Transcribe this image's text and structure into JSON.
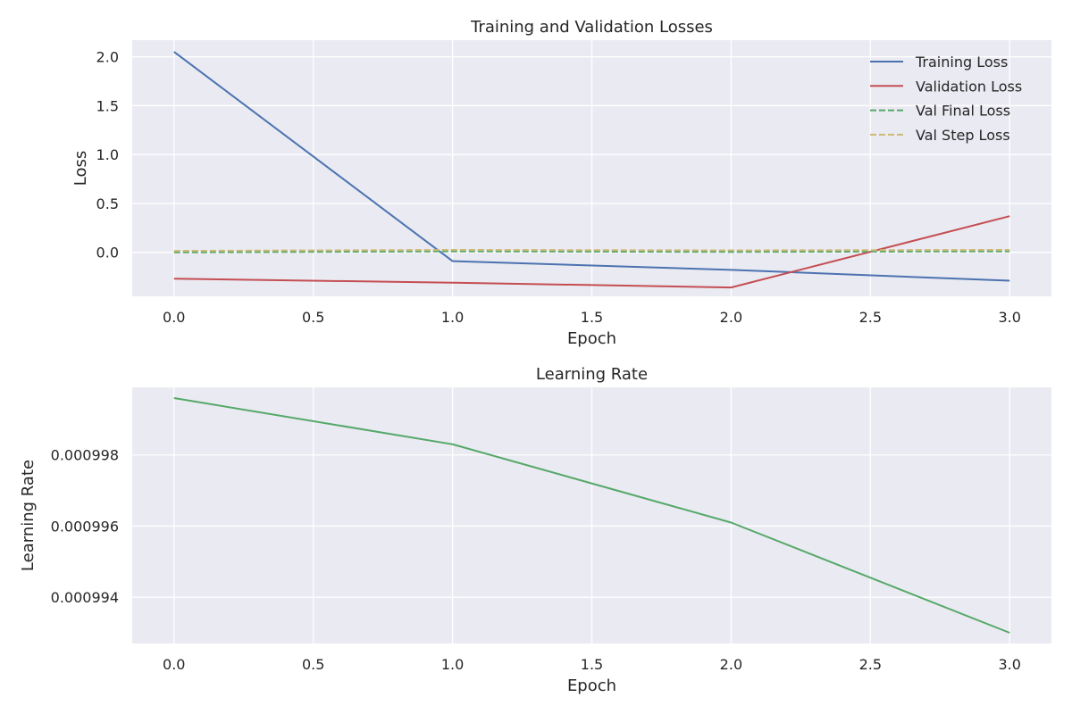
{
  "chart_data": [
    {
      "type": "line",
      "title": "Training and Validation Losses",
      "xlabel": "Epoch",
      "ylabel": "Loss",
      "x": [
        0,
        1,
        2,
        3
      ],
      "xlim": [
        -0.15,
        3.15
      ],
      "ylim": [
        -0.45,
        2.17
      ],
      "xticks": [
        0.0,
        0.5,
        1.0,
        1.5,
        2.0,
        2.5,
        3.0
      ],
      "yticks": [
        0.0,
        0.5,
        1.0,
        1.5,
        2.0
      ],
      "xtick_labels": [
        "0.0",
        "0.5",
        "1.0",
        "1.5",
        "2.0",
        "2.5",
        "3.0"
      ],
      "ytick_labels": [
        "0.0",
        "0.5",
        "1.0",
        "1.5",
        "2.0"
      ],
      "grid": true,
      "legend_position": "top-right",
      "series": [
        {
          "name": "Training Loss",
          "values": [
            2.05,
            -0.09,
            -0.18,
            -0.29
          ],
          "color": "#4c72b0",
          "style": "solid"
        },
        {
          "name": "Validation Loss",
          "values": [
            -0.27,
            -0.31,
            -0.36,
            0.37
          ],
          "color": "#c44e52",
          "style": "solid"
        },
        {
          "name": "Val Final Loss",
          "values": [
            0.0,
            0.01,
            0.005,
            0.01
          ],
          "color": "#55a868",
          "style": "dashed"
        },
        {
          "name": "Val Step Loss",
          "values": [
            0.015,
            0.025,
            0.02,
            0.025
          ],
          "color": "#ccb974",
          "style": "dashed"
        }
      ]
    },
    {
      "type": "line",
      "title": "Learning Rate",
      "xlabel": "Epoch",
      "ylabel": "Learning Rate",
      "x": [
        0,
        1,
        2,
        3
      ],
      "xlim": [
        -0.15,
        3.15
      ],
      "ylim": [
        0.0009927,
        0.0009999
      ],
      "xticks": [
        0.0,
        0.5,
        1.0,
        1.5,
        2.0,
        2.5,
        3.0
      ],
      "yticks": [
        0.000994,
        0.000996,
        0.000998
      ],
      "xtick_labels": [
        "0.0",
        "0.5",
        "1.0",
        "1.5",
        "2.0",
        "2.5",
        "3.0"
      ],
      "ytick_labels": [
        "0.000994",
        "0.000996",
        "0.000998"
      ],
      "grid": true,
      "series": [
        {
          "values": [
            0.0009996,
            0.0009983,
            0.0009961,
            0.000993
          ],
          "color": "#55a868",
          "style": "solid"
        }
      ]
    }
  ]
}
